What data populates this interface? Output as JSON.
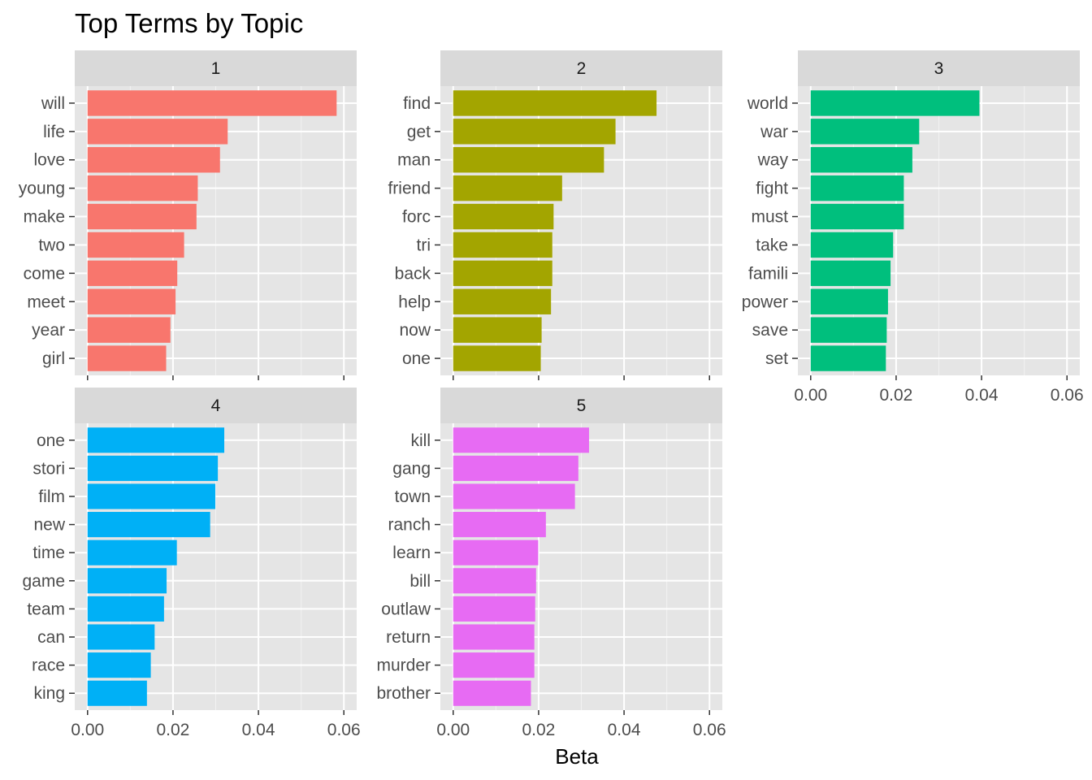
{
  "chart_data": {
    "type": "bar",
    "orientation": "horizontal",
    "layout": "facet_wrap",
    "title": "Top Terms by Topic",
    "xlabel": "Beta",
    "ylabel": "",
    "xlim": [
      0,
      0.06
    ],
    "x_ticks": [
      "0.00",
      "0.02",
      "0.04",
      "0.06"
    ],
    "x_tick_values": [
      0,
      0.02,
      0.04,
      0.06
    ],
    "grid": true,
    "legend": "none",
    "panel_background": "#e5e5e5",
    "strip_background": "#d9d9d9",
    "facets": [
      {
        "label": "1",
        "color": "#f8766d",
        "terms": [
          "will",
          "life",
          "love",
          "young",
          "make",
          "two",
          "come",
          "meet",
          "year",
          "girl"
        ],
        "values": [
          0.0583,
          0.0328,
          0.031,
          0.0258,
          0.0255,
          0.0226,
          0.021,
          0.0206,
          0.0194,
          0.0184
        ]
      },
      {
        "label": "2",
        "color": "#a3a500",
        "terms": [
          "find",
          "get",
          "man",
          "friend",
          "forc",
          "tri",
          "back",
          "help",
          "now",
          "one"
        ],
        "values": [
          0.0476,
          0.038,
          0.0353,
          0.0255,
          0.0235,
          0.0232,
          0.0232,
          0.0229,
          0.0207,
          0.0205
        ]
      },
      {
        "label": "3",
        "color": "#00bf7d",
        "terms": [
          "world",
          "war",
          "way",
          "fight",
          "must",
          "take",
          "famili",
          "power",
          "save",
          "set"
        ],
        "values": [
          0.0395,
          0.0254,
          0.0238,
          0.0218,
          0.0218,
          0.0193,
          0.0187,
          0.0181,
          0.0178,
          0.0176
        ]
      },
      {
        "label": "4",
        "color": "#00b0f6",
        "terms": [
          "one",
          "stori",
          "film",
          "new",
          "time",
          "game",
          "team",
          "can",
          "race",
          "king"
        ],
        "values": [
          0.032,
          0.0305,
          0.0299,
          0.0287,
          0.0209,
          0.0185,
          0.0179,
          0.0157,
          0.0148,
          0.0139
        ]
      },
      {
        "label": "5",
        "color": "#e76bf3",
        "terms": [
          "kill",
          "gang",
          "town",
          "ranch",
          "learn",
          "bill",
          "outlaw",
          "return",
          "murder",
          "brother"
        ],
        "values": [
          0.0318,
          0.0293,
          0.0285,
          0.0217,
          0.0199,
          0.0194,
          0.0192,
          0.019,
          0.019,
          0.0182
        ]
      }
    ]
  }
}
